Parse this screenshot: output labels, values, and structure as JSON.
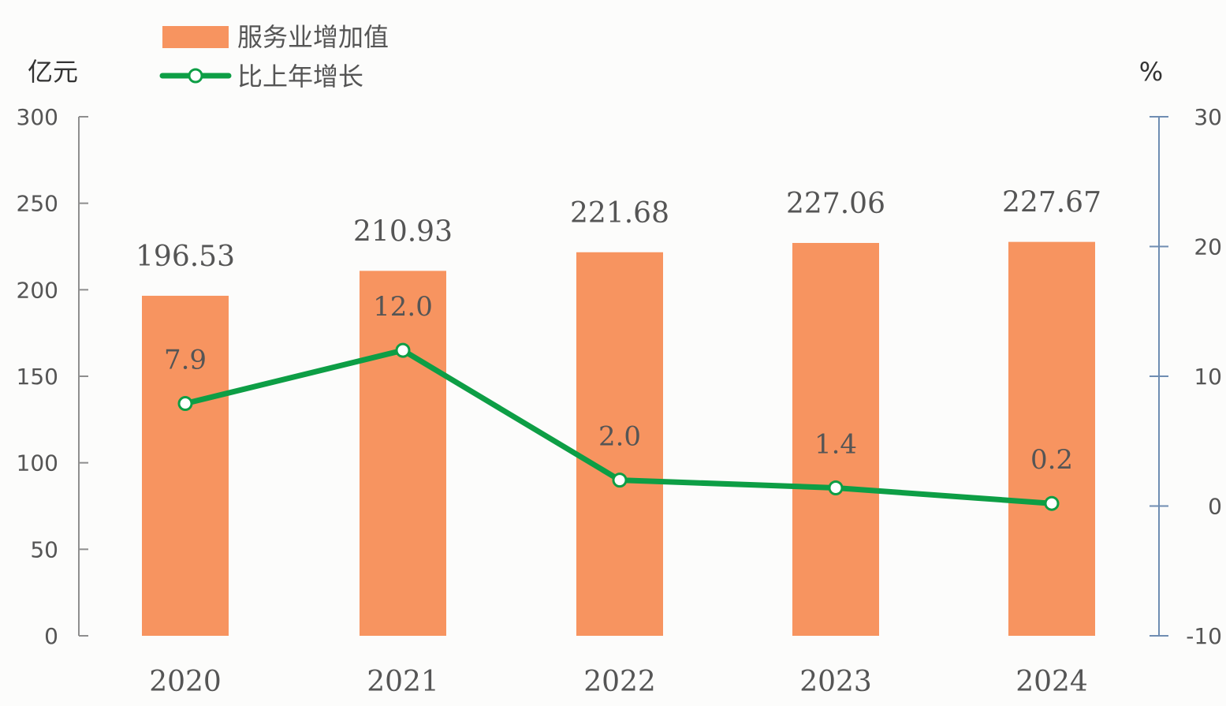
{
  "chart_data": {
    "type": "bar",
    "categories": [
      "2020",
      "2021",
      "2022",
      "2023",
      "2024"
    ],
    "series": [
      {
        "name": "服务业增加值",
        "type": "bar",
        "axis": "left",
        "values": [
          196.53,
          210.93,
          221.68,
          227.06,
          227.67
        ],
        "labels": [
          "196.53",
          "210.93",
          "221.68",
          "227.06",
          "227.67"
        ],
        "color": "#f79460"
      },
      {
        "name": "比上年增长",
        "type": "line",
        "axis": "right",
        "values": [
          7.9,
          12.0,
          2.0,
          1.4,
          0.2
        ],
        "labels": [
          "7.9",
          "12.0",
          "2.0",
          "1.4",
          "0.2"
        ],
        "color": "#0d9e45",
        "marker_fill": "#ffffff"
      }
    ],
    "y_left": {
      "unit": "亿元",
      "ylim": [
        0,
        300
      ],
      "ticks": [
        "0",
        "50",
        "100",
        "150",
        "200",
        "250",
        "300"
      ]
    },
    "y_right": {
      "unit": "%",
      "ylim": [
        -10,
        30
      ],
      "ticks": [
        "-10",
        "0",
        "10",
        "20",
        "30"
      ]
    },
    "grid": false,
    "legend_position": "top-left",
    "colors": {
      "bar": "#f79460",
      "line": "#0d9e45",
      "axis_left": "#8e8e8e",
      "axis_right": "#6f8db2",
      "text": "#555555"
    }
  }
}
